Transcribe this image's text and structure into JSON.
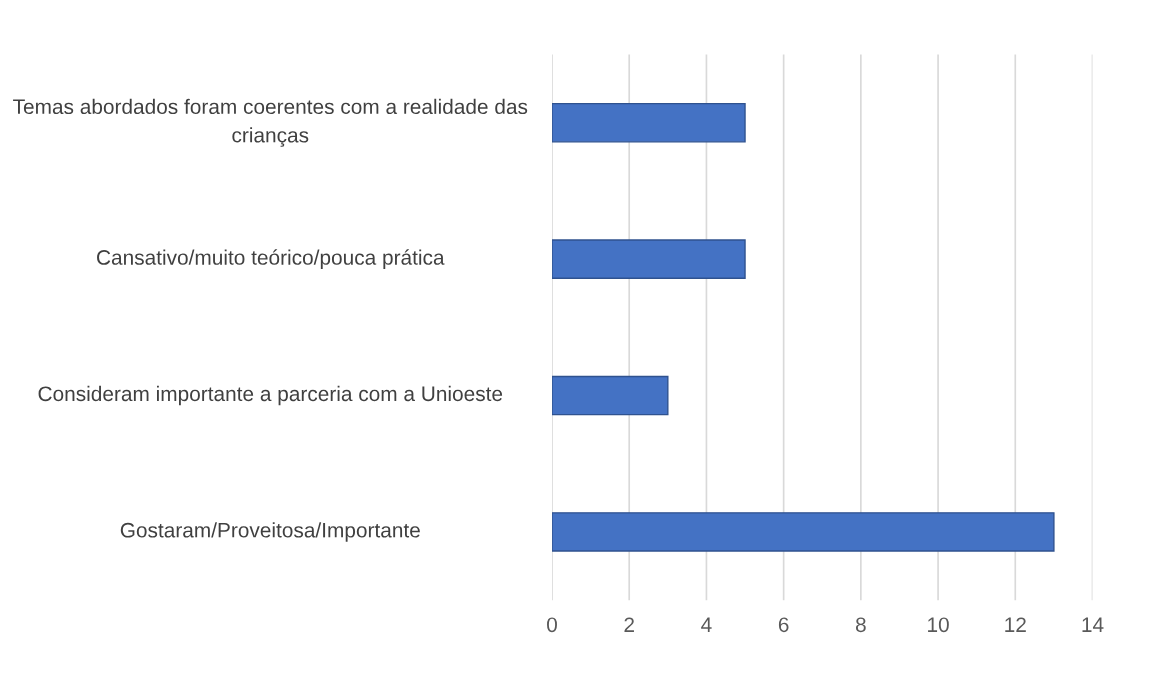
{
  "chart_data": {
    "type": "bar",
    "orientation": "horizontal",
    "categories": [
      "Temas abordados foram coerentes com a realidade das crianças",
      "Cansativo/muito teórico/pouca prática",
      "Consideram importante a parceria com a Unioeste",
      "Gostaram/Proveitosa/Importante"
    ],
    "values": [
      5,
      5,
      3,
      13
    ],
    "color": "#4472c4",
    "xlim": [
      0,
      14
    ],
    "xticks": [
      0,
      2,
      4,
      6,
      8,
      10,
      12,
      14
    ],
    "grid": "x"
  }
}
